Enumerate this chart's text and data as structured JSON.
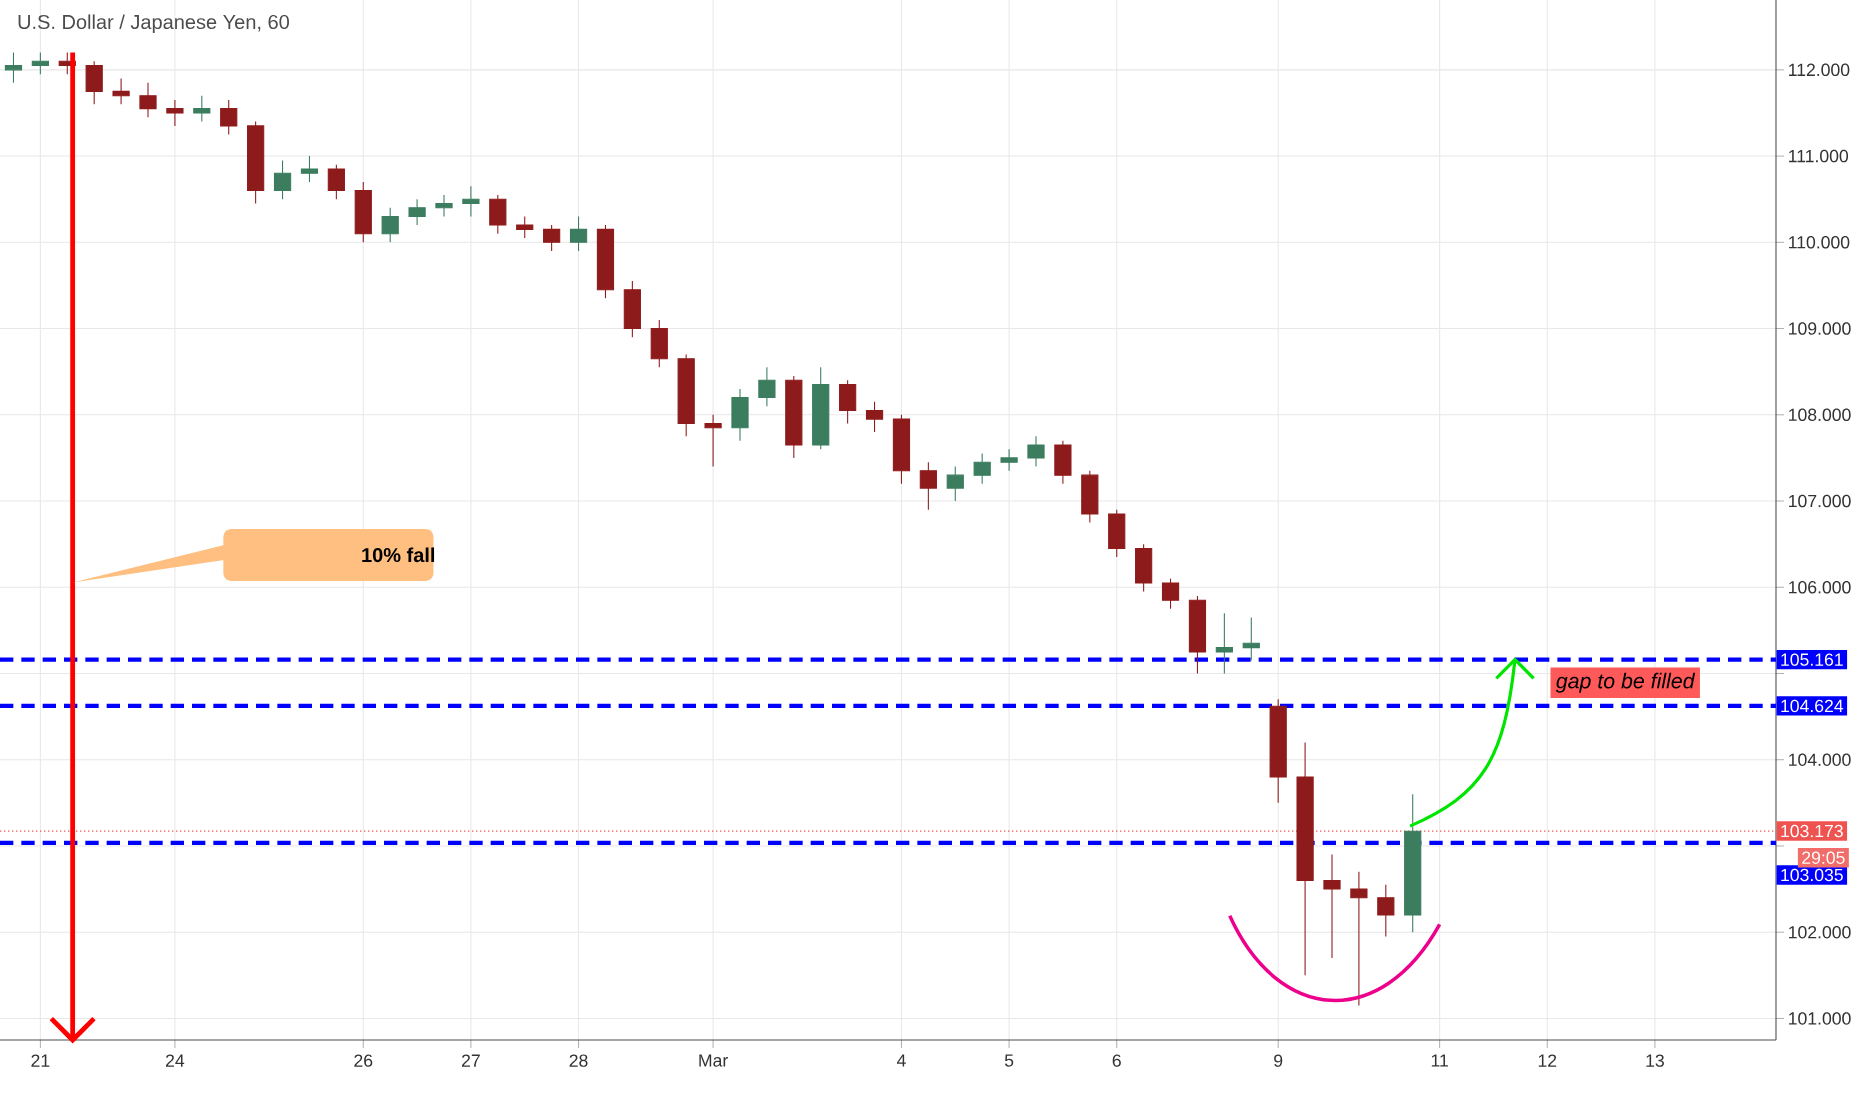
{
  "chart_data": {
    "type": "candlestick",
    "title": "U.S. Dollar / Japanese Yen, 60",
    "categories": [
      null,
      "21",
      null,
      null,
      null,
      null,
      "24",
      null,
      null,
      null,
      null,
      null,
      null,
      "26",
      null,
      null,
      null,
      "27",
      null,
      null,
      null,
      "28",
      null,
      null,
      null,
      null,
      "Mar",
      null,
      null,
      null,
      null,
      null,
      null,
      "4",
      null,
      null,
      null,
      "5",
      null,
      null,
      null,
      "6",
      null,
      null,
      null,
      null,
      null,
      "9",
      null,
      null,
      null,
      null,
      null,
      "11",
      null,
      null,
      null,
      "12",
      null,
      null,
      null,
      "13",
      null,
      null,
      null,
      null
    ],
    "ohlc": [
      [
        112.0,
        112.2,
        111.85,
        112.05
      ],
      [
        112.05,
        112.2,
        111.95,
        112.1
      ],
      [
        112.1,
        112.2,
        111.95,
        112.05
      ],
      [
        112.05,
        112.1,
        111.6,
        111.75
      ],
      [
        111.75,
        111.9,
        111.6,
        111.7
      ],
      [
        111.7,
        111.85,
        111.45,
        111.55
      ],
      [
        111.55,
        111.65,
        111.35,
        111.5
      ],
      [
        111.5,
        111.7,
        111.4,
        111.55
      ],
      [
        111.55,
        111.65,
        111.25,
        111.35
      ],
      [
        111.35,
        111.4,
        110.45,
        110.6
      ],
      [
        110.6,
        110.95,
        110.5,
        110.8
      ],
      [
        110.8,
        111.0,
        110.7,
        110.85
      ],
      [
        110.85,
        110.9,
        110.5,
        110.6
      ],
      [
        110.6,
        110.7,
        110.0,
        110.1
      ],
      [
        110.1,
        110.4,
        110.0,
        110.3
      ],
      [
        110.3,
        110.5,
        110.2,
        110.4
      ],
      [
        110.4,
        110.55,
        110.3,
        110.45
      ],
      [
        110.45,
        110.65,
        110.3,
        110.5
      ],
      [
        110.5,
        110.55,
        110.1,
        110.2
      ],
      [
        110.2,
        110.3,
        110.05,
        110.15
      ],
      [
        110.15,
        110.2,
        109.9,
        110.0
      ],
      [
        110.0,
        110.3,
        109.9,
        110.15
      ],
      [
        110.15,
        110.2,
        109.35,
        109.45
      ],
      [
        109.45,
        109.55,
        108.9,
        109.0
      ],
      [
        109.0,
        109.1,
        108.55,
        108.65
      ],
      [
        108.65,
        108.7,
        107.75,
        107.9
      ],
      [
        107.9,
        108.0,
        107.4,
        107.85
      ],
      [
        107.85,
        108.3,
        107.7,
        108.2
      ],
      [
        108.2,
        108.55,
        108.1,
        108.4
      ],
      [
        108.4,
        108.45,
        107.5,
        107.65
      ],
      [
        107.65,
        108.55,
        107.6,
        108.35
      ],
      [
        108.35,
        108.4,
        107.9,
        108.05
      ],
      [
        108.05,
        108.15,
        107.8,
        107.95
      ],
      [
        107.95,
        108.0,
        107.2,
        107.35
      ],
      [
        107.35,
        107.45,
        106.9,
        107.15
      ],
      [
        107.15,
        107.4,
        107.0,
        107.3
      ],
      [
        107.3,
        107.55,
        107.2,
        107.45
      ],
      [
        107.45,
        107.6,
        107.35,
        107.5
      ],
      [
        107.5,
        107.75,
        107.4,
        107.65
      ],
      [
        107.65,
        107.7,
        107.2,
        107.3
      ],
      [
        107.3,
        107.35,
        106.75,
        106.85
      ],
      [
        106.85,
        106.9,
        106.35,
        106.45
      ],
      [
        106.45,
        106.5,
        105.95,
        106.05
      ],
      [
        106.05,
        106.1,
        105.75,
        105.85
      ],
      [
        105.85,
        105.9,
        105.0,
        105.25
      ],
      [
        105.25,
        105.7,
        105.0,
        105.3
      ],
      [
        105.3,
        105.65,
        105.15,
        105.35
      ],
      [
        104.62,
        104.7,
        103.5,
        103.8
      ],
      [
        103.8,
        104.2,
        101.5,
        102.6
      ],
      [
        102.6,
        102.9,
        101.7,
        102.5
      ],
      [
        102.5,
        102.7,
        101.15,
        102.4
      ],
      [
        102.4,
        102.55,
        101.95,
        102.2
      ],
      [
        102.2,
        103.6,
        102.0,
        103.17
      ],
      null,
      null,
      null,
      null,
      null,
      null,
      null,
      null,
      null,
      null,
      null,
      null,
      null
    ],
    "ylim": [
      100.75,
      112.81
    ],
    "yticks": [
      {
        "value": 101,
        "label": "101.000"
      },
      {
        "value": 102,
        "label": "102.000"
      },
      {
        "value": 103,
        "label": null
      },
      {
        "value": 104,
        "label": "104.000"
      },
      {
        "value": 105,
        "label": null
      },
      {
        "value": 106,
        "label": "106.000"
      },
      {
        "value": 107,
        "label": "107.000"
      },
      {
        "value": 108,
        "label": "108.000"
      },
      {
        "value": 109,
        "label": "109.000"
      },
      {
        "value": 110,
        "label": "110.000"
      },
      {
        "value": 111,
        "label": "111.000"
      },
      {
        "value": 112,
        "label": "112.000"
      }
    ],
    "grid": true,
    "ref_lines": [
      {
        "axis": "y",
        "value": 105.161,
        "label": "105.161",
        "color": "#0000ff",
        "line_style": "dashed"
      },
      {
        "axis": "y",
        "value": 104.624,
        "label": "104.624",
        "color": "#0000ff",
        "line_style": "dashed"
      },
      {
        "axis": "y",
        "value": 103.173,
        "label": "103.173",
        "color": "#ef5350",
        "line_style": "dotted"
      },
      {
        "axis": "y",
        "value": 103.035,
        "label": "103.035",
        "color": "#0000ff",
        "line_style": "dashed"
      }
    ],
    "annotations": [
      "10% fall",
      "gap to be filled",
      "29:05"
    ]
  }
}
